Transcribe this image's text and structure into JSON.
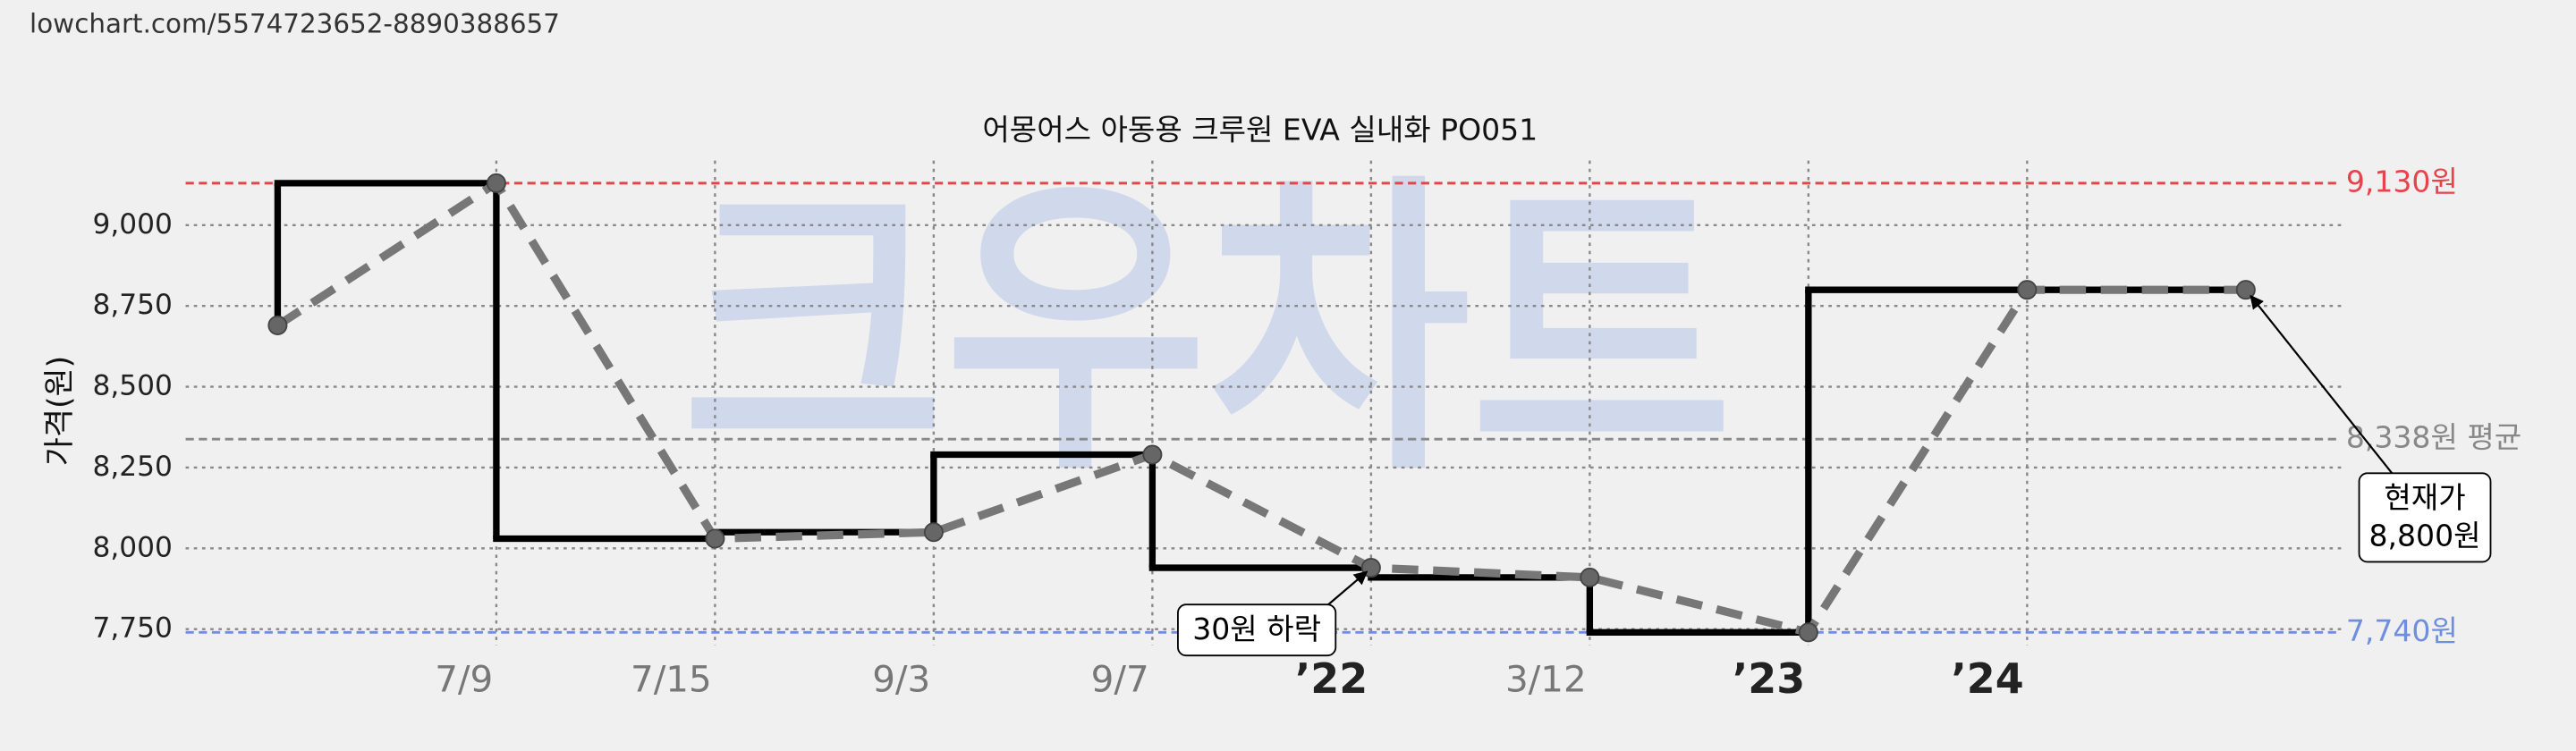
{
  "url": "lowchart.com/5574723652-8890388657",
  "chart_data": {
    "type": "line",
    "title": "어몽어스 아동용 크루원 EVA 실내화 PO051",
    "y_label": "가격(원)",
    "watermark": "크우차트",
    "categories": [
      null,
      "7/9",
      "7/15",
      "9/3",
      "9/7",
      "’22",
      "3/12",
      "’23",
      "’24",
      null
    ],
    "values": [
      8690,
      9130,
      8030,
      8050,
      8290,
      7940,
      7910,
      7740,
      8800,
      8800
    ],
    "color": "#777777",
    "step_color": "#000000",
    "ylim": [
      7700,
      9200
    ],
    "yticks": [
      {
        "value": 7750,
        "label": "7,750"
      },
      {
        "value": 8000,
        "label": "8,000"
      },
      {
        "value": 8250,
        "label": "8,250"
      },
      {
        "value": 8500,
        "label": "8,500"
      },
      {
        "value": 8750,
        "label": "8,750"
      },
      {
        "value": 9000,
        "label": "9,000"
      }
    ],
    "grid": true,
    "reference_lines": [
      {
        "value": 9130,
        "label": "9,130원",
        "color": "#e8434b"
      },
      {
        "value": 8338,
        "label": "8,338원 평균",
        "color": "#888888"
      },
      {
        "value": 7740,
        "label": "7,740원",
        "color": "#6f8fde"
      }
    ],
    "annotations": [
      {
        "lines": [
          "30원 하락"
        ]
      },
      {
        "lines": [
          "현재가",
          "8,800원"
        ]
      }
    ]
  }
}
